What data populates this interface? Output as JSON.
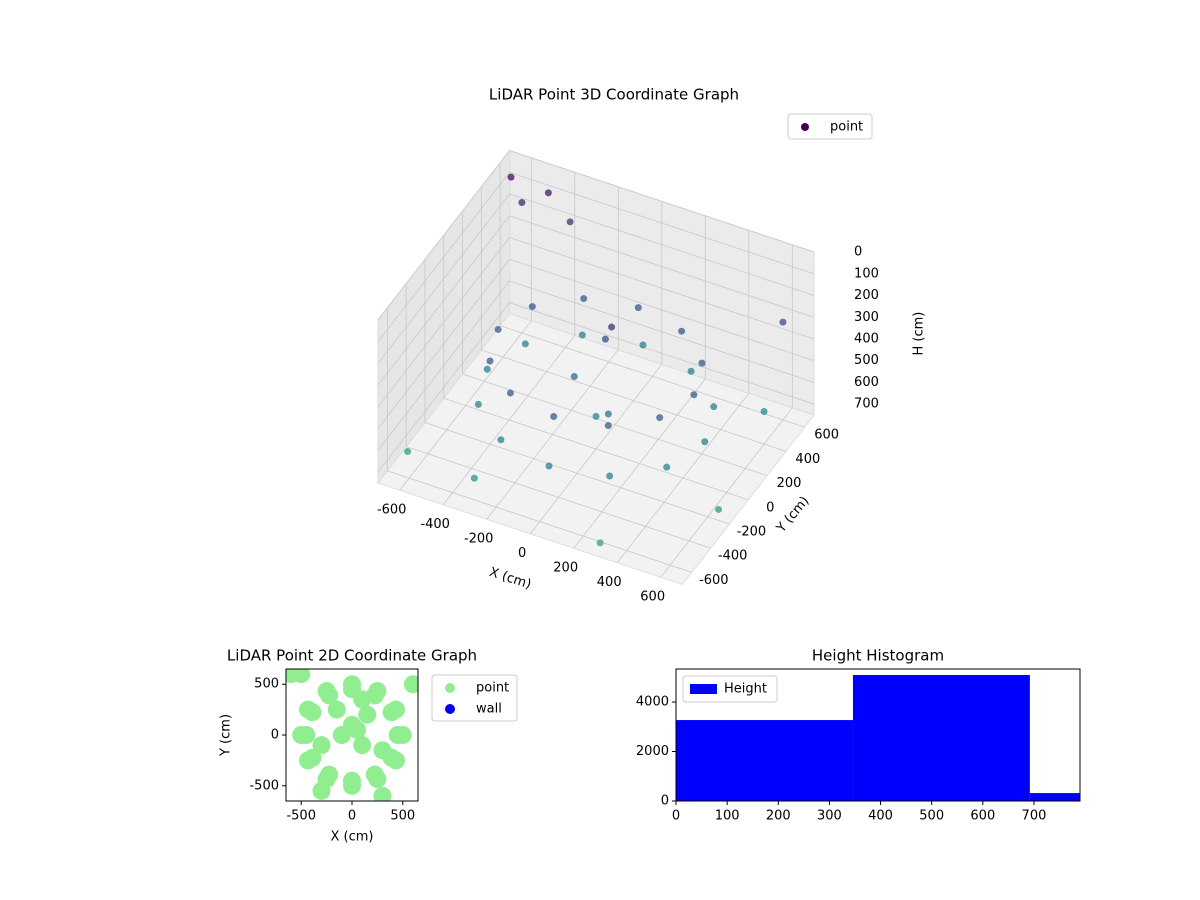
{
  "chart_data": [
    {
      "type": "scatter3d",
      "title": "LiDAR Point 3D Coordinate Graph",
      "xlabel": "X (cm)",
      "ylabel": "Y (cm)",
      "zlabel": "H (cm)",
      "xlim": [
        -700,
        700
      ],
      "ylim": [
        -700,
        700
      ],
      "zlim": [
        0,
        750
      ],
      "zinverted": true,
      "colormap": "viridis",
      "xticks": [
        -600,
        -400,
        -200,
        0,
        200,
        400,
        600
      ],
      "yticks": [
        -600,
        -400,
        -200,
        0,
        200,
        400,
        600
      ],
      "zticks": [
        0,
        100,
        200,
        300,
        400,
        500,
        600,
        700
      ],
      "grid": true,
      "legend": "upper right",
      "series": [
        {
          "name": "point",
          "color": "#440154",
          "x": [
            450,
            390,
            225,
            0,
            -225,
            -390,
            -450,
            -390,
            -225,
            0,
            225,
            390,
            500,
            433,
            250,
            0,
            -250,
            -433,
            -500,
            -433,
            -250,
            0,
            250,
            433,
            0,
            50,
            -100,
            100,
            0,
            -650,
            -600,
            -500,
            -400,
            600,
            650,
            -650,
            300,
            600,
            -300
          ],
          "y": [
            0,
            225,
            390,
            450,
            390,
            225,
            0,
            -225,
            -390,
            -450,
            -390,
            -225,
            0,
            250,
            433,
            500,
            433,
            250,
            0,
            -250,
            -433,
            -500,
            -433,
            -250,
            100,
            50,
            0,
            -100,
            0,
            600,
            600,
            650,
            650,
            400,
            -200,
            -500,
            -650,
            600,
            -600
          ],
          "z": [
            350,
            350,
            350,
            350,
            350,
            350,
            350,
            350,
            350,
            350,
            350,
            350,
            550,
            550,
            550,
            550,
            550,
            550,
            550,
            550,
            550,
            550,
            550,
            550,
            300,
            200,
            450,
            500,
            600,
            50,
            150,
            100,
            200,
            600,
            700,
            700,
            720,
            300,
            650
          ]
        }
      ]
    },
    {
      "type": "scatter",
      "title": "LiDAR Point 2D Coordinate Graph",
      "xlabel": "X (cm)",
      "ylabel": "Y (cm)",
      "xlim": [
        -650,
        650
      ],
      "ylim": [
        -650,
        650
      ],
      "xticks": [
        -500,
        0,
        500
      ],
      "yticks": [
        -500,
        0,
        500
      ],
      "legend": "outside right",
      "series": [
        {
          "name": "point",
          "color": "#90ee90",
          "x": [
            450,
            390,
            225,
            0,
            -225,
            -390,
            -450,
            -390,
            -225,
            0,
            225,
            390,
            500,
            433,
            250,
            0,
            -250,
            -433,
            -500,
            -433,
            -250,
            0,
            250,
            433,
            0,
            50,
            -100,
            100,
            -600,
            -500,
            300,
            600,
            -300,
            150,
            -150,
            300,
            -300,
            100
          ],
          "y": [
            0,
            225,
            390,
            450,
            390,
            225,
            0,
            -225,
            -390,
            -450,
            -390,
            -225,
            0,
            250,
            433,
            500,
            433,
            250,
            0,
            -250,
            -433,
            -500,
            -433,
            -250,
            100,
            50,
            0,
            -100,
            600,
            600,
            -600,
            500,
            -550,
            200,
            250,
            -150,
            -100,
            350
          ]
        },
        {
          "name": "wall",
          "color": "#0000ff",
          "x": [],
          "y": []
        }
      ]
    },
    {
      "type": "histogram",
      "title": "Height Histogram",
      "xlim": [
        0,
        790
      ],
      "ylim": [
        0,
        5333
      ],
      "xticks": [
        0,
        100,
        200,
        300,
        400,
        500,
        600,
        700
      ],
      "yticks": [
        0,
        2000,
        4000
      ],
      "legend": "upper left",
      "series": [
        {
          "name": "Height",
          "color": "#0000ff",
          "bins": [
            0,
            346,
            692,
            790
          ],
          "values": [
            3270,
            5090,
            320
          ]
        }
      ]
    }
  ]
}
